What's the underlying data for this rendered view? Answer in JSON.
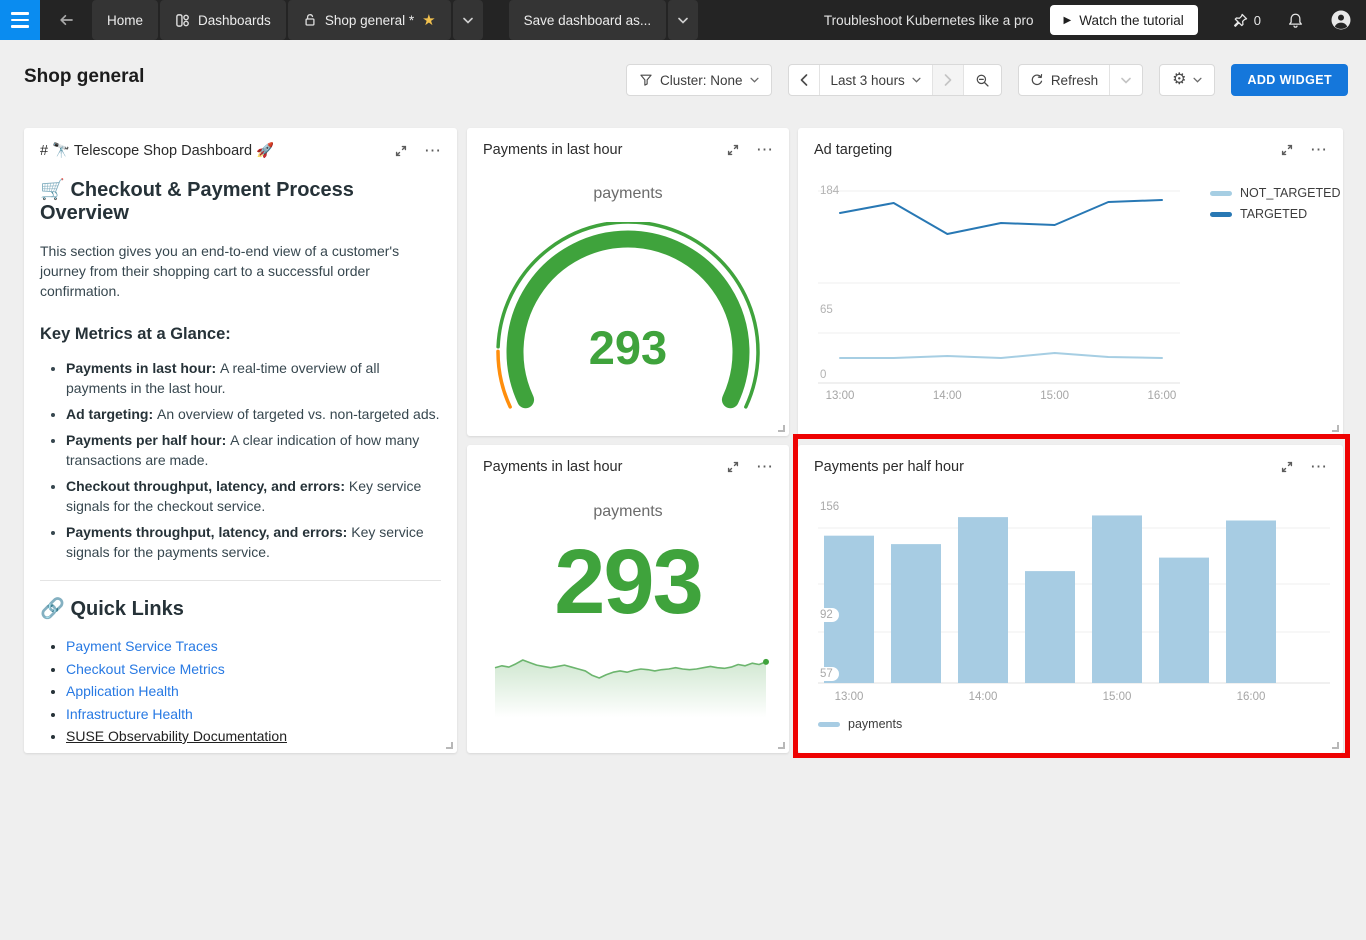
{
  "topbar": {
    "home": "Home",
    "dashboards": "Dashboards",
    "current_dashboard": "Shop general *",
    "save_as": "Save dashboard as...",
    "promo": "Troubleshoot Kubernetes like a pro",
    "watch_tutorial": "Watch the tutorial",
    "pin_count": "0"
  },
  "header": {
    "title": "Shop general",
    "cluster_button": "Cluster: None",
    "time_range": "Last 3 hours",
    "refresh_label": "Refresh",
    "add_widget_label": "ADD WIDGET"
  },
  "icons": {
    "ellipsis": "⋯",
    "gear": "⚙",
    "star": "★",
    "play": "▶"
  },
  "markdown_widget": {
    "widget_title": "# 🔭 Telescope Shop Dashboard 🚀",
    "heading1": "🛒 Checkout & Payment Process Overview",
    "intro": "This section gives you an end-to-end view of a customer's journey from their shopping cart to a successful order confirmation.",
    "heading2": "Key Metrics at a Glance:",
    "metrics": [
      {
        "term": "Payments in last hour:",
        "desc": "A real-time overview of all payments in the last hour."
      },
      {
        "term": "Ad targeting:",
        "desc": "An overview of targeted vs. non-targeted ads."
      },
      {
        "term": "Payments per half hour:",
        "desc": "A clear indication of how many transactions are made."
      },
      {
        "term": "Checkout throughput, latency, and errors:",
        "desc": "Key service signals for the checkout service."
      },
      {
        "term": "Payments throughput, latency, and errors:",
        "desc": "Key service signals for the payments service."
      }
    ],
    "links_heading": "🔗 Quick Links",
    "links": [
      {
        "label": "Payment Service Traces",
        "style": "link"
      },
      {
        "label": "Checkout Service Metrics",
        "style": "link"
      },
      {
        "label": "Application Health",
        "style": "link"
      },
      {
        "label": "Infrastructure Health",
        "style": "link"
      },
      {
        "label": "SUSE Observability Documentation",
        "style": "underline-dark"
      }
    ]
  },
  "chart_data": [
    {
      "id": "payments_gauge",
      "type": "gauge",
      "title": "Payments in last hour",
      "metric_label": "payments",
      "value": 293,
      "min": 0,
      "max": 293,
      "arc_color": "#3fa33c",
      "scale_colors": [
        {
          "to_fraction": 0.11,
          "color": "#ff8e0c"
        },
        {
          "to_fraction": 1,
          "color": "#3fa33c"
        }
      ]
    },
    {
      "id": "ad_targeting",
      "type": "line",
      "title": "Ad targeting",
      "x": [
        "13:00",
        "13:30",
        "14:00",
        "14:30",
        "15:00",
        "15:30",
        "16:00"
      ],
      "x_tick_labels": [
        "13:00",
        "14:00",
        "15:00",
        "16:00"
      ],
      "series": [
        {
          "name": "NOT_TARGETED",
          "color": "#a6cee3",
          "values": [
            17,
            17,
            19,
            17,
            22,
            18,
            17
          ]
        },
        {
          "name": "TARGETED",
          "color": "#2878b4",
          "values": [
            162,
            172,
            141,
            152,
            150,
            173,
            175
          ]
        }
      ],
      "ylim": [
        0,
        184
      ],
      "yticks": [
        184,
        65,
        0
      ],
      "grid": true,
      "legend_position": "right"
    },
    {
      "id": "payments_number",
      "type": "metric-sparkline",
      "title": "Payments in last hour",
      "metric_label": "payments",
      "value": 293,
      "color": "#3fa33c",
      "sparkline_color": "#6cb56e",
      "sparkline": [
        284,
        287,
        285,
        290,
        296,
        292,
        288,
        286,
        284,
        286,
        288,
        285,
        282,
        279,
        272,
        268,
        273,
        277,
        279,
        277,
        280,
        282,
        281,
        279,
        281,
        282,
        284,
        282,
        281,
        282,
        284,
        286,
        284,
        283,
        285,
        289,
        287,
        291,
        289,
        293
      ]
    },
    {
      "id": "payments_per_half_hour",
      "type": "bar",
      "title": "Payments per half hour",
      "categories": [
        "13:00",
        "13:30",
        "14:00",
        "14:30",
        "15:00",
        "15:30",
        "16:00"
      ],
      "x_tick_labels": [
        "13:00",
        "14:00",
        "15:00",
        "16:00"
      ],
      "values": [
        139,
        134,
        150,
        118,
        151,
        126,
        148
      ],
      "ylim": [
        52,
        160
      ],
      "yticks": [
        156,
        92,
        57
      ],
      "bar_color": "#a7cce3",
      "legend": "payments",
      "legend_position": "bottom"
    }
  ],
  "colors": {
    "accent_blue": "#1577db",
    "menu_blue": "#0a8cf0",
    "green": "#3fa33c",
    "orange": "#ff8e0c",
    "bar_fill": "#a7cce3",
    "targeted_line": "#2878b4",
    "not_targeted_line": "#a6cee3",
    "highlight_red": "#ee0202"
  }
}
